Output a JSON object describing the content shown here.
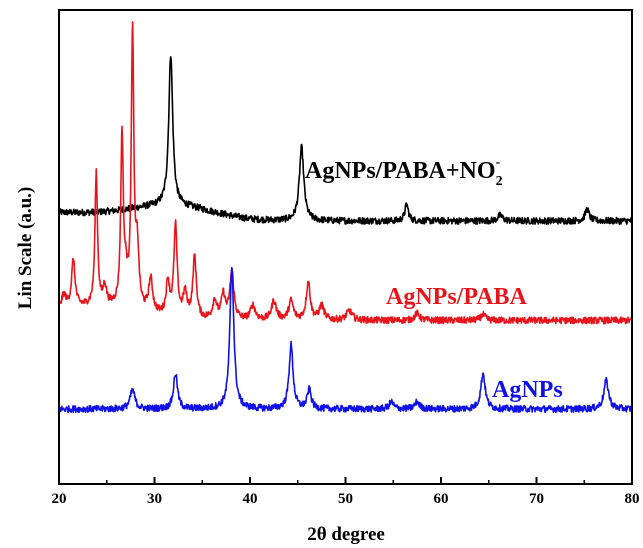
{
  "chart_data": {
    "type": "line",
    "xlabel": "2θ degree",
    "ylabel": "Lin Scale (a.u.)",
    "xlim": [
      20,
      80
    ],
    "x_ticks": [
      20,
      30,
      40,
      50,
      60,
      70,
      80
    ],
    "y_ticks_shown": false,
    "grid": false,
    "legend": "none (inline series labels)",
    "series": [
      {
        "name": "AgNPs/PABA+NO2-",
        "label_main": "AgNPs/PABA+NO",
        "label_sub": "2",
        "label_sup": "-",
        "color": "#000000",
        "baseline": 0.555,
        "peaks": [
          [
            31.7,
            0.32,
            0.25
          ],
          [
            45.4,
            0.155,
            0.28
          ],
          [
            56.4,
            0.035,
            0.22
          ],
          [
            66.2,
            0.012,
            0.3
          ],
          [
            75.3,
            0.025,
            0.25
          ]
        ],
        "hump": [
          [
            24,
            0.0,
            8.0
          ],
          [
            32,
            0.025,
            6.0
          ]
        ]
      },
      {
        "name": "AgNPs/PABA",
        "label_main": "AgNPs/PABA",
        "color": "#e8141c",
        "baseline": 0.345,
        "peaks": [
          [
            20.5,
            0.03,
            0.3
          ],
          [
            21.5,
            0.1,
            0.22
          ],
          [
            23.9,
            0.28,
            0.16
          ],
          [
            24.8,
            0.04,
            0.2
          ],
          [
            26.6,
            0.36,
            0.16
          ],
          [
            27.0,
            0.05,
            0.2
          ],
          [
            27.7,
            0.58,
            0.16
          ],
          [
            28.2,
            0.12,
            0.2
          ],
          [
            29.6,
            0.07,
            0.25
          ],
          [
            31.4,
            0.07,
            0.22
          ],
          [
            32.2,
            0.19,
            0.2
          ],
          [
            33.2,
            0.05,
            0.25
          ],
          [
            34.2,
            0.13,
            0.22
          ],
          [
            36.3,
            0.04,
            0.25
          ],
          [
            37.2,
            0.05,
            0.25
          ],
          [
            38.1,
            0.1,
            0.25
          ],
          [
            40.3,
            0.03,
            0.3
          ],
          [
            42.5,
            0.04,
            0.3
          ],
          [
            44.3,
            0.04,
            0.28
          ],
          [
            46.1,
            0.08,
            0.25
          ],
          [
            47.5,
            0.03,
            0.3
          ],
          [
            50.4,
            0.02,
            0.35
          ],
          [
            57.5,
            0.015,
            0.3
          ],
          [
            64.4,
            0.012,
            0.3
          ]
        ],
        "hump": [
          [
            24,
            0.03,
            6.0
          ]
        ]
      },
      {
        "name": "AgNPs",
        "label_main": "AgNPs",
        "color": "#1010e8",
        "baseline": 0.158,
        "peaks": [
          [
            27.7,
            0.04,
            0.3
          ],
          [
            32.2,
            0.075,
            0.25
          ],
          [
            38.1,
            0.3,
            0.25
          ],
          [
            44.3,
            0.135,
            0.25
          ],
          [
            46.2,
            0.04,
            0.25
          ],
          [
            54.8,
            0.015,
            0.28
          ],
          [
            57.5,
            0.015,
            0.3
          ],
          [
            64.4,
            0.075,
            0.28
          ],
          [
            77.3,
            0.06,
            0.3
          ]
        ],
        "hump": []
      }
    ]
  }
}
